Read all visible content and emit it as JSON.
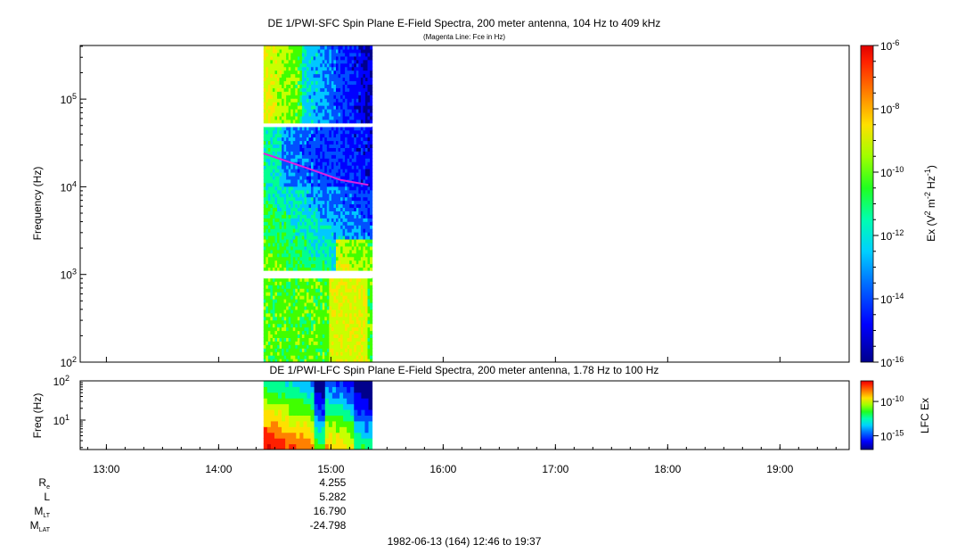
{
  "chart_data": [
    {
      "type": "heatmap",
      "title": "DE 1/PWI-SFC  Spin Plane E-Field Spectra, 200 meter antenna, 104 Hz to 409 kHz",
      "subtitle": "(Magenta Line: Fce in Hz)",
      "ylabel": "Frequency (Hz)",
      "y_scale": "log",
      "ylim": [
        100,
        409000
      ],
      "y_ticks": [
        {
          "value": 100,
          "base": "10",
          "exp": "2"
        },
        {
          "value": 1000,
          "base": "10",
          "exp": "3"
        },
        {
          "value": 10000,
          "base": "10",
          "exp": "4"
        },
        {
          "value": 100000,
          "base": "10",
          "exp": "5"
        }
      ],
      "data_time_range": [
        "14:24",
        "15:22"
      ],
      "fce_line": {
        "color": "#e020e0",
        "points": [
          [
            "14:24",
            24000
          ],
          [
            "14:45",
            17000
          ],
          [
            "15:05",
            12000
          ],
          [
            "15:20",
            10500
          ]
        ]
      },
      "colorbar": {
        "label_parts": [
          "Ex (V",
          "2",
          " m",
          "-2",
          " Hz",
          "-1",
          ")"
        ],
        "scale": "log",
        "ticks": [
          {
            "base": "10",
            "exp": "-6"
          },
          {
            "base": "10",
            "exp": "-8"
          },
          {
            "base": "10",
            "exp": "-10"
          },
          {
            "base": "10",
            "exp": "-12"
          },
          {
            "base": "10",
            "exp": "-14"
          },
          {
            "base": "10",
            "exp": "-16"
          }
        ],
        "range": [
          -16,
          -6
        ]
      }
    },
    {
      "type": "heatmap",
      "title": "DE 1/PWI-LFC  Spin Plane E-Field Spectra, 200 meter antenna, 1.78 Hz to 100 Hz",
      "ylabel": "Freq (Hz)",
      "y_scale": "log",
      "ylim": [
        1.78,
        100
      ],
      "y_ticks": [
        {
          "value": 10,
          "base": "10",
          "exp": "1"
        },
        {
          "value": 100,
          "base": "10",
          "exp": "2"
        }
      ],
      "data_time_range": [
        "14:24",
        "15:22"
      ],
      "colorbar": {
        "label": "LFC Ex",
        "scale": "log",
        "ticks": [
          {
            "base": "10",
            "exp": "-10"
          },
          {
            "base": "10",
            "exp": "-15"
          }
        ],
        "range": [
          -17,
          -7
        ]
      }
    }
  ],
  "x_axis": {
    "ticks": [
      "13:00",
      "14:00",
      "15:00",
      "16:00",
      "17:00",
      "18:00",
      "19:00"
    ],
    "range": [
      "12:46",
      "19:37"
    ]
  },
  "ephemeris": {
    "rows": [
      {
        "name": "R",
        "sub": "e",
        "value": "4.255"
      },
      {
        "name": "L",
        "sub": "",
        "value": "5.282"
      },
      {
        "name": "M",
        "sub": "LT",
        "value": "16.790"
      },
      {
        "name": "M",
        "sub": "LAT",
        "value": "-24.798"
      }
    ]
  },
  "footer": "1982-06-13 (164) 12:46 to 19:37",
  "colors": {
    "scale": [
      "#00008c",
      "#0000ff",
      "#0050ff",
      "#00c8ff",
      "#00ff90",
      "#40ff00",
      "#c8ff00",
      "#ffe000",
      "#ff8000",
      "#ff2000",
      "#d00000"
    ]
  }
}
